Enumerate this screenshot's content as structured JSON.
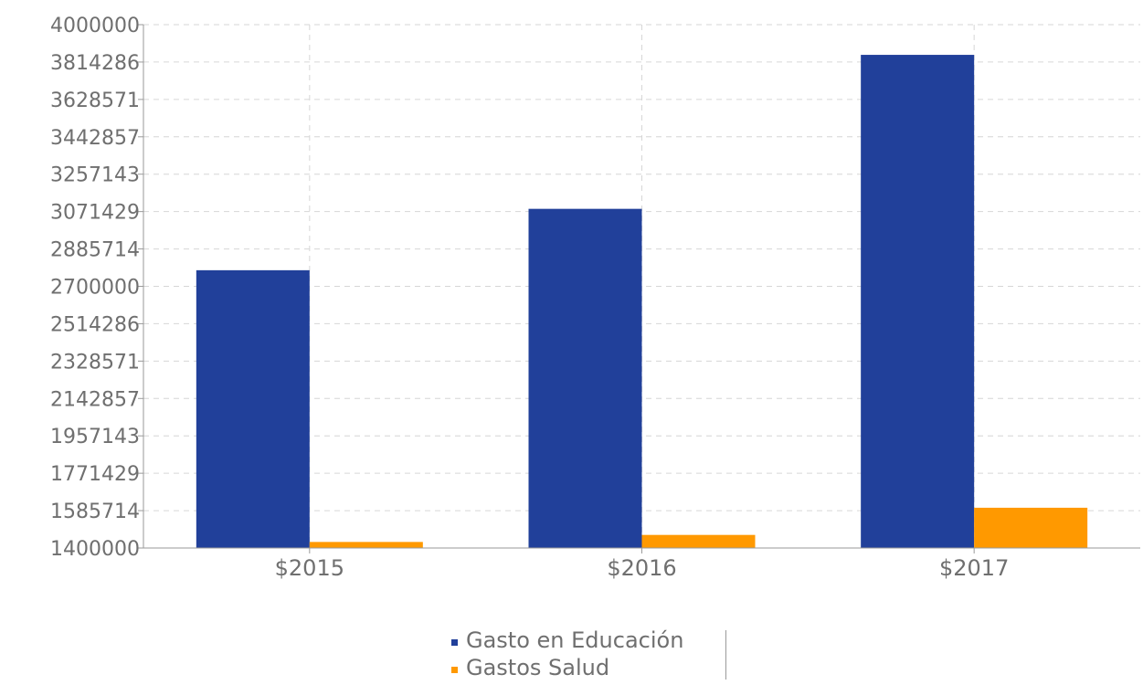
{
  "chart_data": {
    "type": "bar",
    "title": "",
    "xlabel": "",
    "ylabel": "",
    "categories": [
      "$2015",
      "$2016",
      "$2017"
    ],
    "series": [
      {
        "name": "Gasto en Educación",
        "color": "#21409a",
        "values": [
          2780000,
          3085000,
          3850000
        ]
      },
      {
        "name": "Gastos Salud",
        "color": "#ff9900",
        "values": [
          1430000,
          1465000,
          1600000
        ]
      }
    ],
    "ylim": [
      1400000,
      4000000
    ],
    "yticks": [
      "1400000",
      "1585714",
      "1771429",
      "1957143",
      "2142857",
      "2328571",
      "2514286",
      "2700000",
      "2885714",
      "3071429",
      "3257143",
      "3442857",
      "3628571",
      "3814286",
      "4000000"
    ],
    "grid": true,
    "legend_position": "bottom"
  }
}
